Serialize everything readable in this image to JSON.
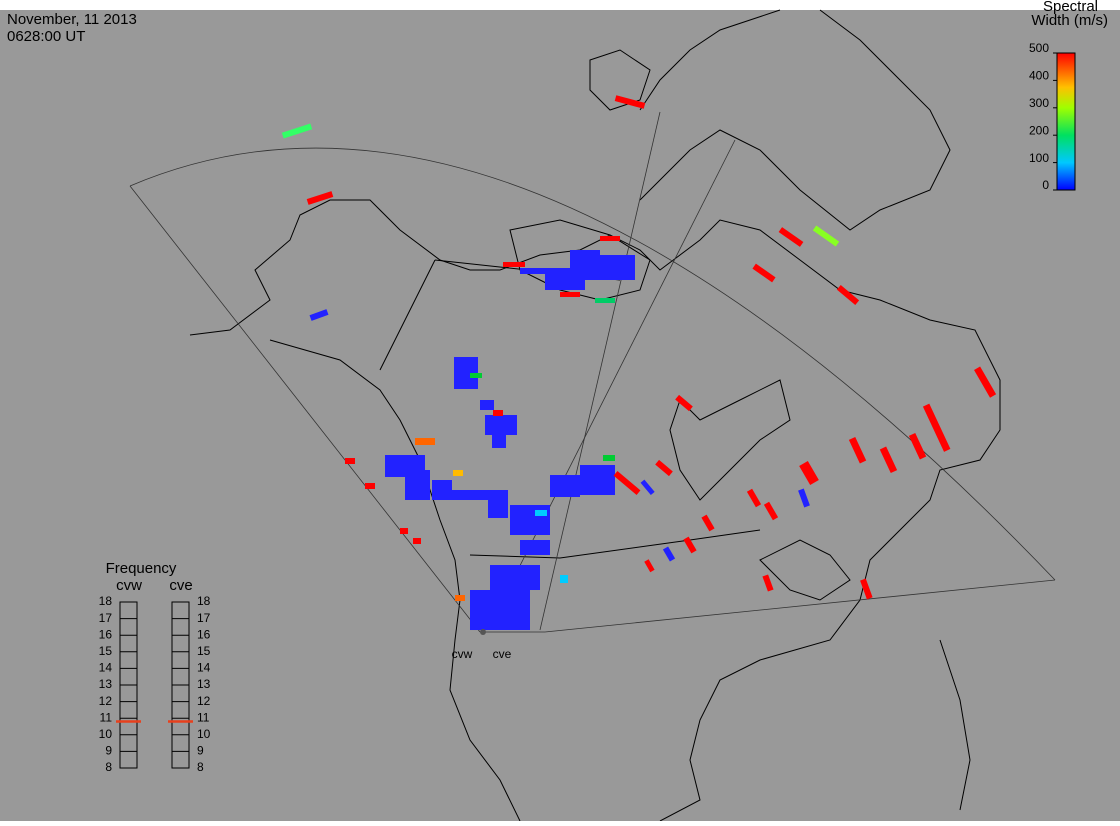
{
  "header": {
    "date": "November, 11 2013",
    "time": "0628:00 UT"
  },
  "colorbar": {
    "title_line1": "Spectral",
    "title_line2": "Width (m/s)",
    "ylim": [
      0,
      500
    ],
    "ticks": [
      0,
      100,
      200,
      300,
      400,
      500
    ]
  },
  "frequency_panel": {
    "title": "Frequency",
    "ylim": [
      8,
      18
    ],
    "ticks": [
      8,
      9,
      10,
      11,
      12,
      13,
      14,
      15,
      16,
      17,
      18
    ],
    "radars": [
      {
        "name": "cvw",
        "frequency": 10.8,
        "color": "#e8401c"
      },
      {
        "name": "cve",
        "frequency": 10.8,
        "color": "#e8401c"
      }
    ]
  },
  "radar_sites": [
    "cvw",
    "cve"
  ]
}
